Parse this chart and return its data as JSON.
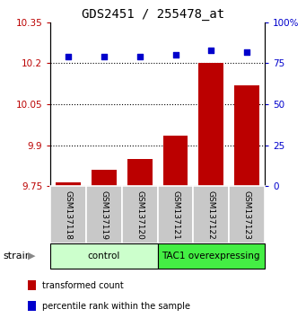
{
  "title": "GDS2451 / 255478_at",
  "samples": [
    "GSM137118",
    "GSM137119",
    "GSM137120",
    "GSM137121",
    "GSM137122",
    "GSM137123"
  ],
  "transformed_counts": [
    9.762,
    9.808,
    9.848,
    9.935,
    10.2,
    10.12
  ],
  "percentile_ranks": [
    79,
    79,
    79,
    80,
    83,
    82
  ],
  "ylim_left": [
    9.75,
    10.35
  ],
  "ylim_right": [
    0,
    100
  ],
  "yticks_left": [
    9.75,
    9.9,
    10.05,
    10.2,
    10.35
  ],
  "yticks_right": [
    0,
    25,
    50,
    75,
    100
  ],
  "ytick_labels_left": [
    "9.75",
    "9.9",
    "10.05",
    "10.2",
    "10.35"
  ],
  "ytick_labels_right": [
    "0",
    "25",
    "50",
    "75",
    "100%"
  ],
  "hlines": [
    9.9,
    10.05,
    10.2
  ],
  "bar_color": "#bb0000",
  "scatter_color": "#0000cc",
  "groups": [
    {
      "label": "control",
      "indices": [
        0,
        1,
        2
      ],
      "color": "#ccffcc"
    },
    {
      "label": "TAC1 overexpressing",
      "indices": [
        3,
        4,
        5
      ],
      "color": "#44ee44"
    }
  ],
  "strain_label": "strain",
  "legend_bar_label": "transformed count",
  "legend_scatter_label": "percentile rank within the sample",
  "title_fontsize": 10,
  "tick_fontsize": 7.5,
  "xlabel_fontsize": 6.5,
  "group_fontsize": 7.5,
  "legend_fontsize": 7,
  "strain_fontsize": 8
}
